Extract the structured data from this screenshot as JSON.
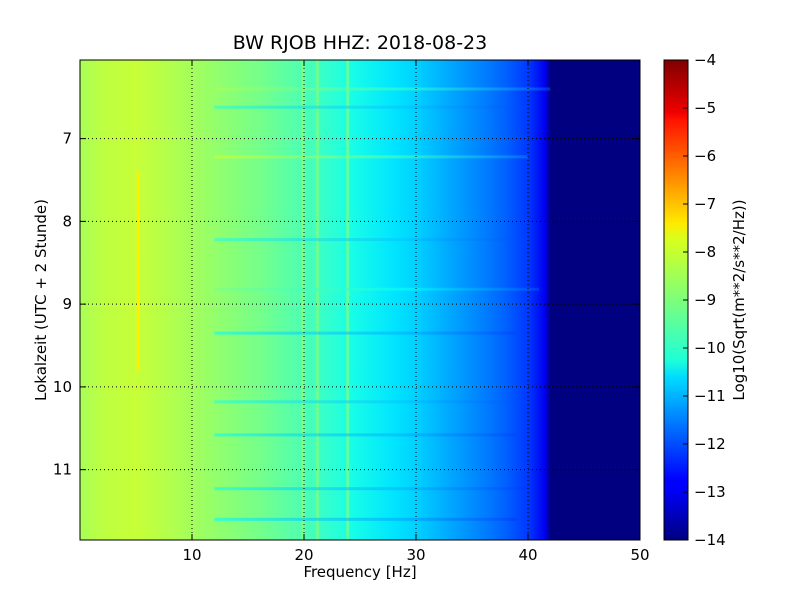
{
  "chart_data": {
    "type": "heatmap",
    "title": "BW RJOB HHZ: 2018-08-23",
    "xlabel": "Frequency [Hz]",
    "ylabel": "Lokalzeit (UTC + 2 Stunde)",
    "xlim": [
      0,
      50
    ],
    "ylim": [
      11.85,
      6.05
    ],
    "y_inverted": true,
    "x_ticks": [
      10,
      20,
      30,
      40,
      50
    ],
    "y_ticks": [
      7,
      8,
      9,
      10,
      11
    ],
    "grid": true,
    "colorbar": {
      "label": "Log10(Sqrt(m**2/s**2/Hz))",
      "range": [
        -14,
        -4
      ],
      "ticks": [
        -4,
        -5,
        -6,
        -7,
        -8,
        -9,
        -10,
        -11,
        -12,
        -13,
        -14
      ],
      "colormap": "jet"
    },
    "spectral_profile": {
      "frequency_hz": [
        0,
        2,
        5,
        8,
        12,
        16,
        20,
        24,
        28,
        30,
        33,
        36,
        38,
        40,
        41.5,
        42,
        50
      ],
      "log_amplitude": [
        -8.6,
        -8.4,
        -8.3,
        -8.5,
        -8.8,
        -9.1,
        -9.5,
        -10.0,
        -10.5,
        -10.7,
        -11.1,
        -11.5,
        -11.8,
        -12.2,
        -12.9,
        -14.0,
        -14.0
      ]
    },
    "persistent_lines": [
      {
        "frequency_hz": 5.2,
        "log_amplitude": -7.6,
        "from_hour": 7.4,
        "to_hour": 9.8
      },
      {
        "frequency_hz": 19.9,
        "log_amplitude": -9.0,
        "from_hour": 6.05,
        "to_hour": 11.85
      },
      {
        "frequency_hz": 21.2,
        "log_amplitude": -9.2,
        "from_hour": 6.05,
        "to_hour": 11.85
      },
      {
        "frequency_hz": 23.9,
        "log_amplitude": -9.3,
        "from_hour": 6.05,
        "to_hour": 11.85
      }
    ],
    "transient_bands": [
      {
        "hour": 6.4,
        "log_amplitude": -8.6,
        "to_hz": 42
      },
      {
        "hour": 6.62,
        "log_amplitude": -9.6,
        "to_hz": 40
      },
      {
        "hour": 7.22,
        "log_amplitude": -8.3,
        "to_hz": 40
      },
      {
        "hour": 8.22,
        "log_amplitude": -9.6,
        "to_hz": 40
      },
      {
        "hour": 8.82,
        "log_amplitude": -9.0,
        "to_hz": 41
      },
      {
        "hour": 9.35,
        "log_amplitude": -9.8,
        "to_hz": 39
      },
      {
        "hour": 10.18,
        "log_amplitude": -9.6,
        "to_hz": 40
      },
      {
        "hour": 10.58,
        "log_amplitude": -9.8,
        "to_hz": 39
      },
      {
        "hour": 11.23,
        "log_amplitude": -9.8,
        "to_hz": 40
      },
      {
        "hour": 11.6,
        "log_amplitude": -9.9,
        "to_hz": 39
      }
    ]
  }
}
